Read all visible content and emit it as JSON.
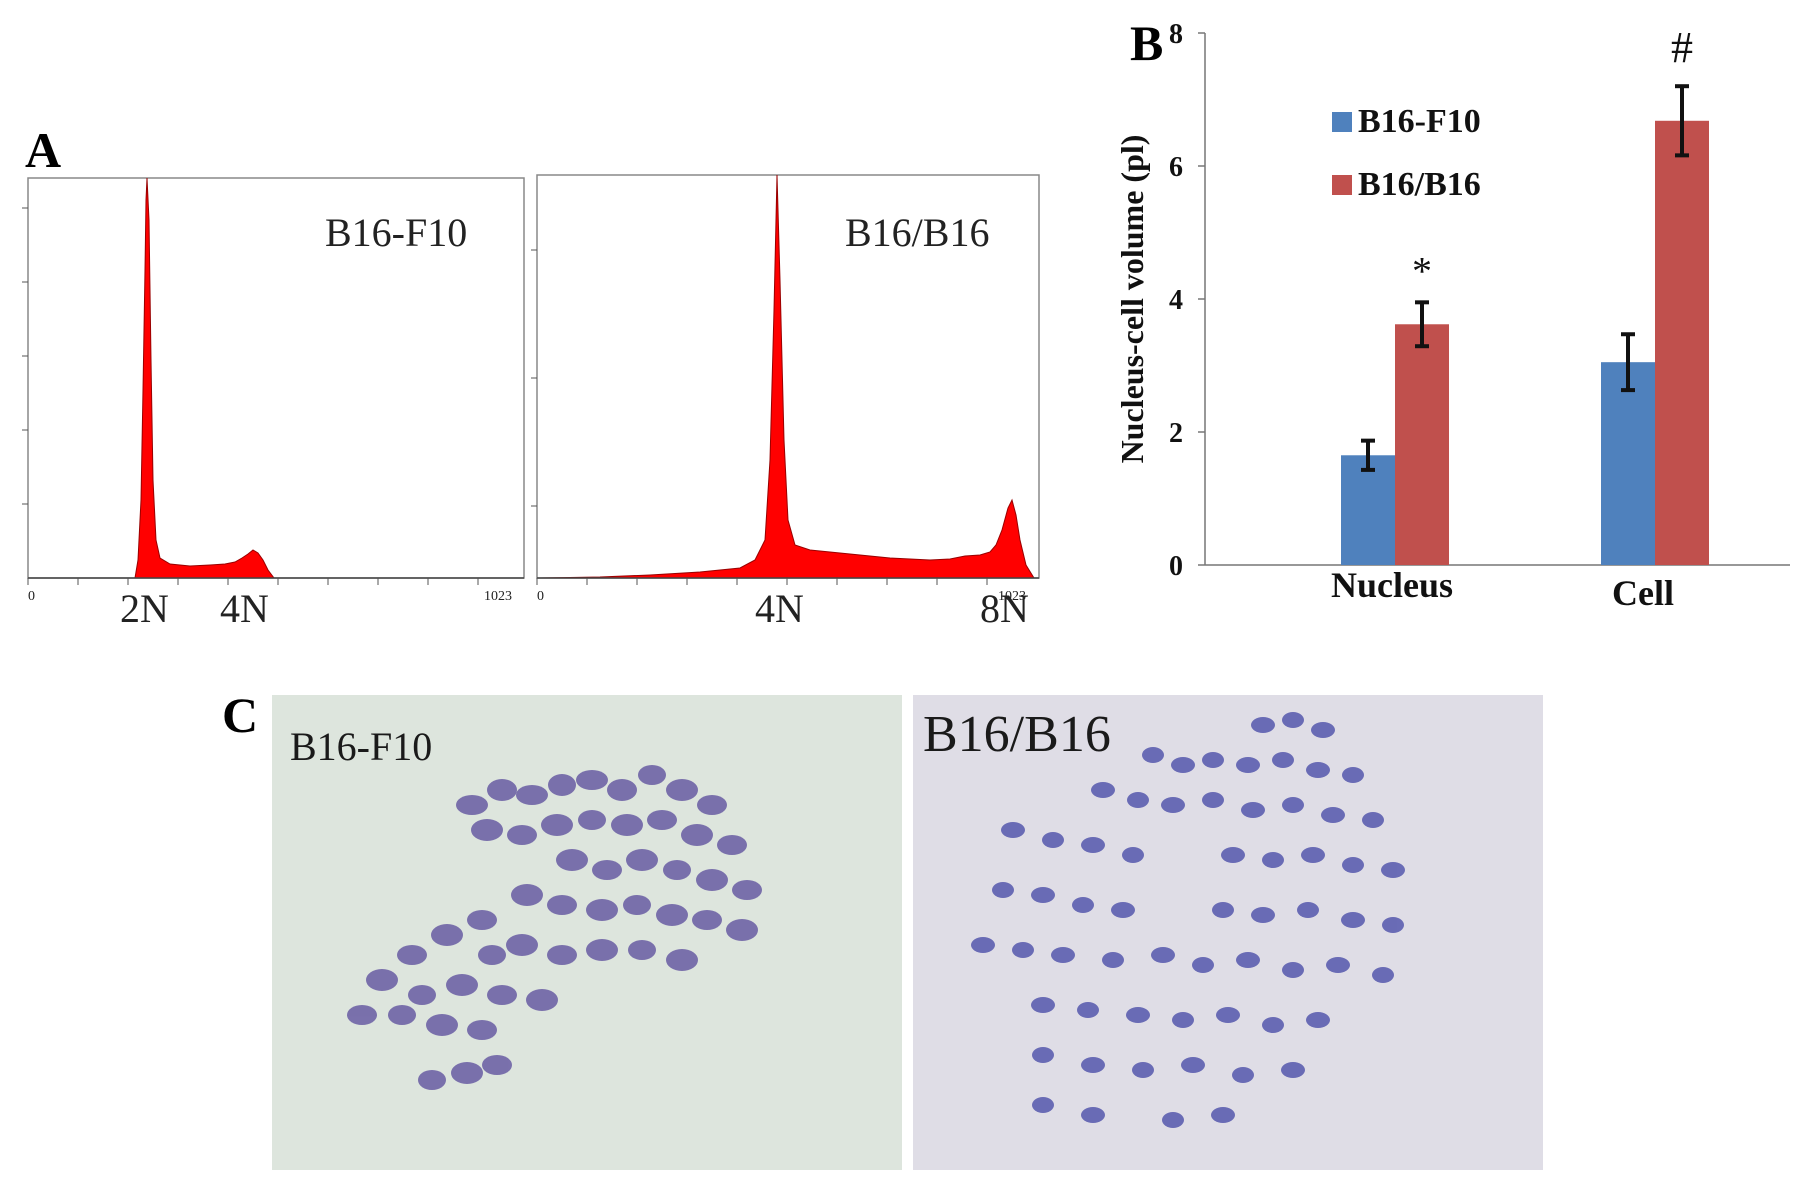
{
  "panels": {
    "a": {
      "letter": "A"
    },
    "b": {
      "letter": "B"
    },
    "c": {
      "letter": "C"
    }
  },
  "histograms": [
    {
      "label": "B16-F10",
      "axis_start": "0",
      "axis_end": "1023",
      "peak_labels": [
        "2N",
        "4N"
      ]
    },
    {
      "label": "B16/B16",
      "axis_start": "0",
      "axis_end": "1023",
      "peak_labels": [
        "4N",
        "8N"
      ]
    }
  ],
  "chart_data": {
    "type": "bar",
    "categories": [
      "Nucleus",
      "Cell"
    ],
    "series": [
      {
        "name": "B16-F10",
        "color": "#4f81bd",
        "values": [
          1.65,
          3.05
        ],
        "errors": [
          0.22,
          0.42
        ]
      },
      {
        "name": "B16/B16",
        "color": "#c0504d",
        "values": [
          3.62,
          6.68
        ],
        "errors": [
          0.33,
          0.52
        ]
      }
    ],
    "significance": [
      "*",
      "#"
    ],
    "ylabel": "Nucleus-cell volume (pl)",
    "ylim": [
      0,
      8
    ],
    "yticks": [
      0,
      2,
      4,
      6,
      8
    ],
    "legend_position": "top-left",
    "grid": false
  },
  "photos": [
    {
      "label": "B16-F10"
    },
    {
      "label": "B16/B16"
    }
  ]
}
